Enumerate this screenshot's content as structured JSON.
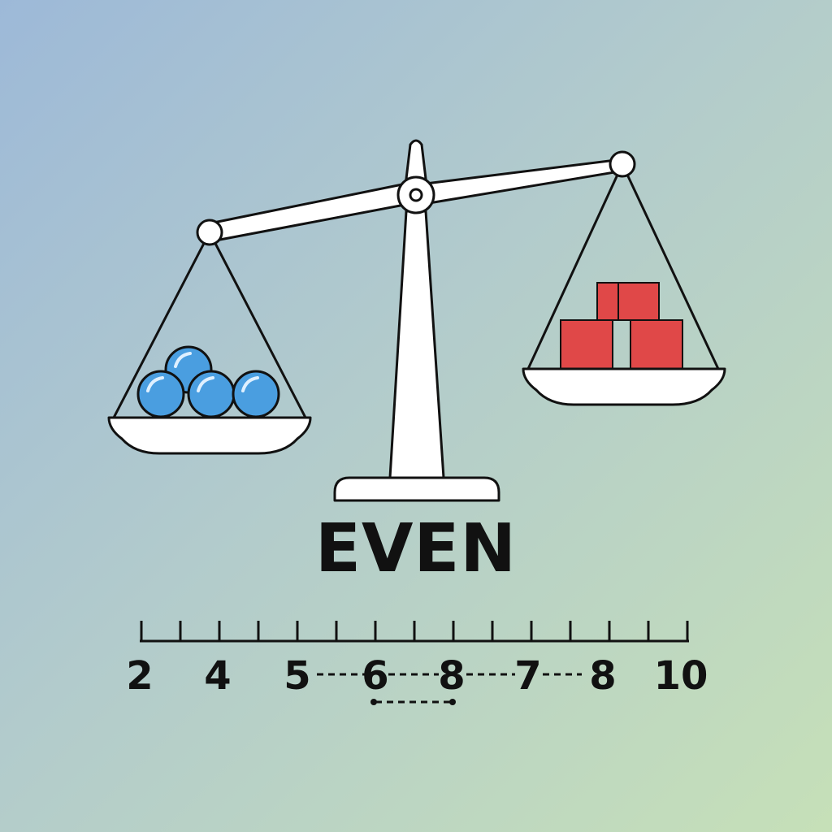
{
  "title": "EVEN",
  "left_pan": {
    "item": "ball",
    "count": 4,
    "color": "#4a9ee0"
  },
  "right_pan": {
    "item": "cube",
    "count": 4,
    "color": "#e04848"
  },
  "number_line": {
    "labels": [
      "2",
      "4",
      "5",
      "6",
      "8",
      "7",
      "8",
      "10"
    ],
    "major_ticks": 15
  },
  "colors": {
    "outline": "#111111",
    "scale": "#ffffff"
  }
}
